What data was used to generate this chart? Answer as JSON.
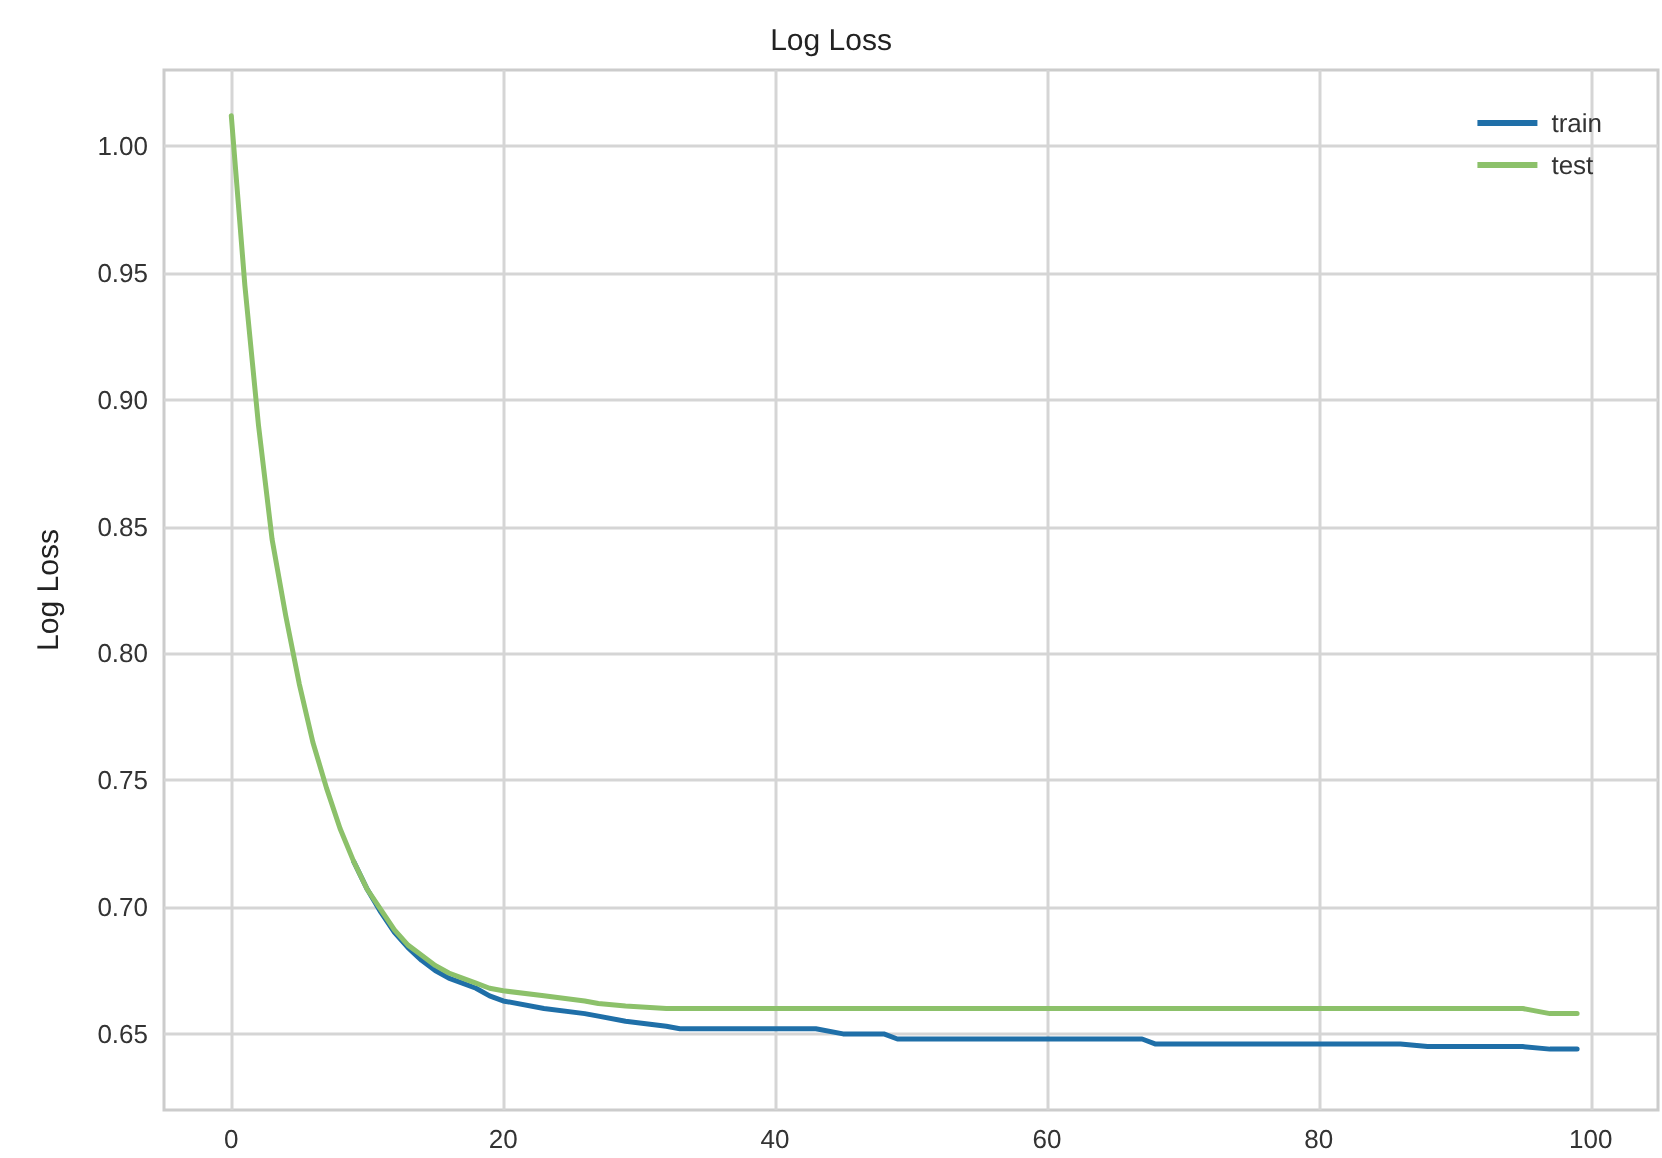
{
  "chart_data": {
    "type": "line",
    "title": "Log Loss",
    "ylabel": "Log Loss",
    "x": [
      0,
      1,
      2,
      3,
      4,
      5,
      6,
      7,
      8,
      9,
      10,
      11,
      12,
      13,
      14,
      15,
      16,
      17,
      18,
      19,
      20,
      23,
      26,
      27,
      29,
      32,
      33,
      43,
      45,
      48,
      49,
      67,
      68,
      86,
      88,
      95,
      97,
      99
    ],
    "series": [
      {
        "name": "train",
        "color": "#1f6fa8",
        "values": [
          null,
          null,
          null,
          null,
          null,
          null,
          null,
          null,
          null,
          0.718,
          0.707,
          0.698,
          0.69,
          0.684,
          0.679,
          0.675,
          0.672,
          0.67,
          0.668,
          0.665,
          0.663,
          0.66,
          0.658,
          0.657,
          0.655,
          0.653,
          0.652,
          0.652,
          0.65,
          0.65,
          0.648,
          0.648,
          0.646,
          0.646,
          0.645,
          0.645,
          0.644,
          0.644
        ]
      },
      {
        "name": "test",
        "color": "#8cc16a",
        "values": [
          1.012,
          0.945,
          0.89,
          0.845,
          0.815,
          0.788,
          0.765,
          0.747,
          0.731,
          0.718,
          0.707,
          0.699,
          0.691,
          0.685,
          0.681,
          0.677,
          0.674,
          0.672,
          0.67,
          0.668,
          0.667,
          0.665,
          0.663,
          0.662,
          0.661,
          0.66,
          0.66,
          0.66,
          0.66,
          0.66,
          0.66,
          0.66,
          0.66,
          0.66,
          0.66,
          0.66,
          0.658,
          0.658
        ]
      }
    ],
    "xlim": [
      -4.95,
      104.95
    ],
    "xticks": [
      0,
      20,
      40,
      60,
      80,
      100
    ],
    "ylim": [
      0.62,
      1.03
    ],
    "yticks": [
      {
        "value": 0.65,
        "label": "0.65"
      },
      {
        "value": 0.7,
        "label": "0.70"
      },
      {
        "value": 0.75,
        "label": "0.75"
      },
      {
        "value": 0.8,
        "label": "0.80"
      },
      {
        "value": 0.85,
        "label": "0.85"
      },
      {
        "value": 0.9,
        "label": "0.90"
      },
      {
        "value": 0.95,
        "label": "0.95"
      },
      {
        "value": 1.0,
        "label": "1.00"
      }
    ],
    "grid": true,
    "legend": "top right",
    "marker": "none",
    "line_style": "solid"
  }
}
